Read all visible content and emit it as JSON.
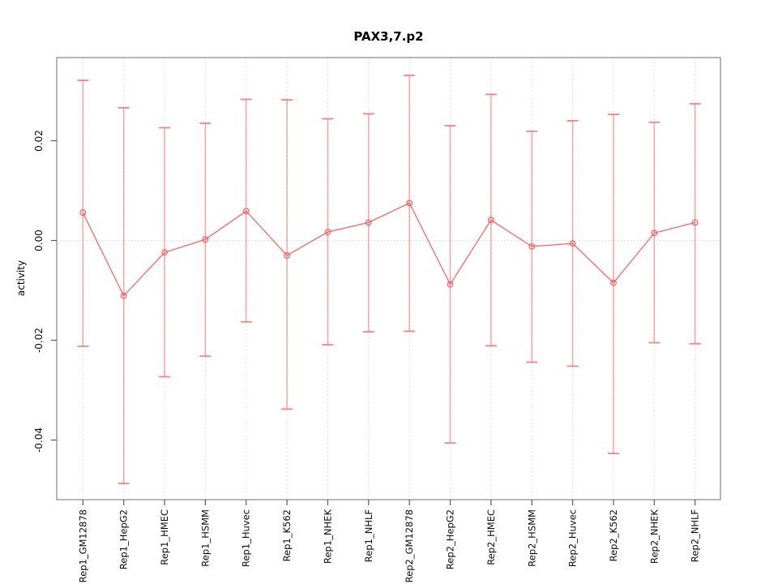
{
  "chart_data": {
    "type": "line",
    "title": "PAX3,7.p2",
    "xlabel": "",
    "ylabel": "activity",
    "legend": "none",
    "grid": {
      "vertical_dashed_per_category": true,
      "horizontal_dotted_zero_line": true
    },
    "ylim": [
      -0.0525,
      0.0369
    ],
    "y_axis": {
      "ticks": [
        {
          "label": "0.02",
          "value": 0.02
        },
        {
          "label": "0.00",
          "value": 0.0
        },
        {
          "label": "-0.02",
          "value": -0.02
        },
        {
          "label": "-0.04",
          "value": -0.04
        }
      ]
    },
    "categories": [
      "Rep1_GM12878",
      "Rep1_HepG2",
      "Rep1_HMEC",
      "Rep1_HSMM",
      "Rep1_Huvec",
      "Rep1_K562",
      "Rep1_NHEK",
      "Rep1_NHLF",
      "Rep2_GM12878",
      "Rep2_HepG2",
      "Rep2_HMEC",
      "Rep2_HSMM",
      "Rep2_Huvec",
      "Rep2_K562",
      "Rep2_NHEK",
      "Rep2_NHLF"
    ],
    "series": [
      {
        "name": "activity",
        "values": [
          0.0056,
          -0.0111,
          -0.0024,
          0.0002,
          0.0059,
          -0.003,
          0.0017,
          0.0036,
          0.0075,
          -0.0088,
          0.0041,
          -0.0012,
          -0.0006,
          -0.0085,
          0.0015,
          0.0036
        ],
        "upper": [
          0.0321,
          0.0266,
          0.0226,
          0.0235,
          0.0283,
          0.0282,
          0.0244,
          0.0254,
          0.0331,
          0.023,
          0.0293,
          0.0219,
          0.024,
          0.0253,
          0.0237,
          0.0274
        ],
        "lower": [
          -0.0212,
          -0.0487,
          -0.0273,
          -0.0232,
          -0.0163,
          -0.0338,
          -0.0209,
          -0.0183,
          -0.0182,
          -0.0406,
          -0.0211,
          -0.0244,
          -0.0252,
          -0.0427,
          -0.0205,
          -0.0207
        ]
      }
    ],
    "colors": {
      "line": "#ff5252",
      "point": "#ff5252",
      "errorbar": "#ff6b6b",
      "grid": "#dedede",
      "zero_line": "#d9d9d9",
      "axis_box": "#979797",
      "tick": "#5a5a5a",
      "text": "#0a0a0a"
    },
    "point_style": "open-circle"
  }
}
